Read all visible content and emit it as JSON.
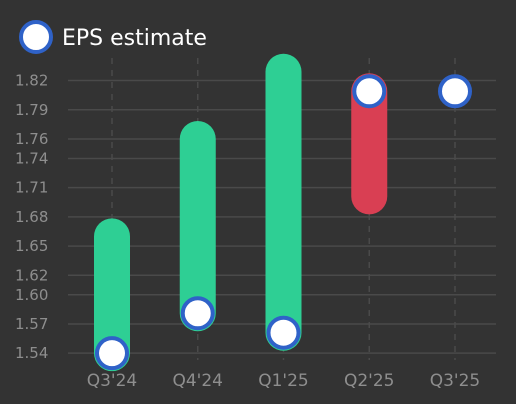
{
  "chart_data": {
    "type": "bar",
    "categories": [
      "Q3'24",
      "Q4'24",
      "Q1'25",
      "Q2'25",
      "Q3'25"
    ],
    "series": [
      {
        "name": "EPS estimate",
        "values": [
          1.54,
          1.581,
          1.561,
          1.809,
          1.809
        ]
      },
      {
        "name": "",
        "values": [
          1.66,
          1.76,
          1.829,
          1.701,
          null
        ]
      }
    ],
    "bar_direction": [
      "up",
      "up",
      "up",
      "down",
      null
    ],
    "y_ticks": [
      1.54,
      1.57,
      1.6,
      1.62,
      1.65,
      1.68,
      1.71,
      1.74,
      1.76,
      1.79,
      1.82
    ],
    "y_tick_labels": [
      "1.54",
      "1.57",
      "1.60",
      "1.62",
      "1.65",
      "1.68",
      "1.71",
      "1.74",
      "1.76",
      "1.79",
      "1.82"
    ],
    "ylim": [
      1.533,
      1.837
    ],
    "grid": true,
    "legend_position": "top-left",
    "colors": {
      "background": "#333333",
      "grid": "#4a4a4a",
      "tick_text": "#8e8e8e",
      "legend_text": "#ffffff",
      "up": "#2ecf94",
      "down": "#d93f53",
      "marker_fill": "#ffffff",
      "marker_stroke": "#2f62c8"
    }
  }
}
